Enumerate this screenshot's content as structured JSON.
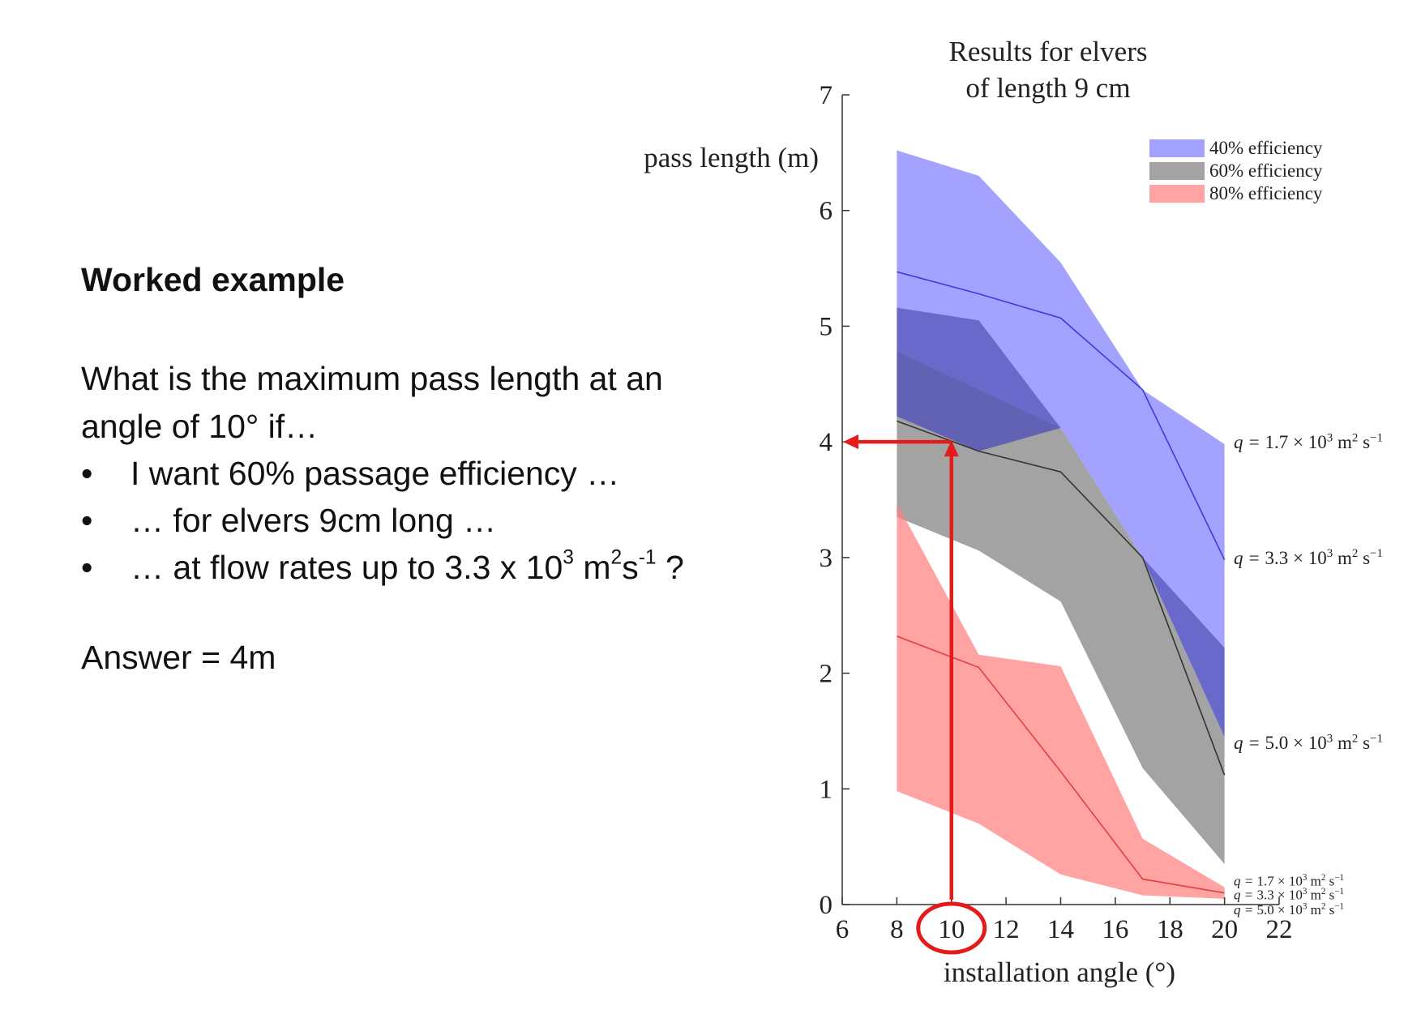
{
  "slide": {
    "heading": "Worked example",
    "question": "What is the maximum pass length at an angle of 10° if…",
    "bullet_symbol": "•",
    "bullets": [
      {
        "text": "I want 60% passage efficiency …"
      },
      {
        "text": "… for elvers 9cm long …"
      },
      {
        "pre": "… at flow rates up to 3.3 x 10",
        "sup1": "3",
        "mid": " m",
        "sup2": "2",
        "mid2": "s",
        "sup3": "-1",
        "post": " ?"
      }
    ],
    "answer": "Answer = 4m"
  },
  "chart_data": {
    "type": "area",
    "title_lines": [
      "Results for elvers",
      "of length 9 cm"
    ],
    "ylabel": "pass length (m)",
    "xlabel": "installation angle (°)",
    "xlim": [
      6,
      22
    ],
    "ylim": [
      0,
      7
    ],
    "xticks": [
      6,
      8,
      10,
      12,
      14,
      16,
      18,
      20,
      22
    ],
    "yticks": [
      0,
      1,
      2,
      3,
      4,
      5,
      6,
      7
    ],
    "x": [
      8,
      11,
      14,
      17,
      20
    ],
    "legend_position": "top-right",
    "series": [
      {
        "name": "40% efficiency",
        "color": "#7f7fff",
        "upper": [
          6.52,
          6.3,
          5.55,
          4.45,
          3.98
        ],
        "lower": [
          4.22,
          3.92,
          4.12,
          3.0,
          1.45
        ],
        "mid": [
          5.47,
          5.28,
          5.07,
          4.45,
          2.98
        ]
      },
      {
        "name": "60% efficiency",
        "color": "#808080",
        "upper": [
          4.78,
          4.45,
          4.12,
          3.0,
          1.45
        ],
        "lower": [
          3.35,
          3.06,
          2.62,
          1.18,
          0.35
        ],
        "mid": [
          4.18,
          3.92,
          3.74,
          3.0,
          1.12
        ]
      },
      {
        "name": "80% efficiency",
        "color": "#ff8080",
        "upper": [
          3.47,
          2.16,
          2.06,
          0.57,
          0.15
        ],
        "lower": [
          0.98,
          0.7,
          0.26,
          0.08,
          0.05
        ],
        "mid": [
          2.32,
          2.05,
          1.15,
          0.22,
          0.1
        ]
      }
    ],
    "dark_overlap": {
      "x": [
        8,
        11,
        14,
        17,
        20
      ],
      "upper": [
        5.16,
        5.05,
        4.12,
        3.0,
        2.22
      ],
      "lower": [
        4.22,
        3.92,
        4.12,
        3.0,
        1.45
      ],
      "color": "#5555bb"
    },
    "flow_labels_right": [
      {
        "q": "1.7",
        "y": 4.0
      },
      {
        "q": "3.3",
        "y": 3.0
      },
      {
        "q": "5.0",
        "y": 1.4
      }
    ],
    "flow_labels_bottom": [
      {
        "q": "1.7",
        "y": 0.2
      },
      {
        "q": "3.3",
        "y": 0.08
      },
      {
        "q": "5.0",
        "y": -0.05
      }
    ],
    "flow_label_prefix": "q = ",
    "flow_label_times": " × 10",
    "flow_label_exp": "3",
    "flow_label_unit": " m",
    "flow_label_unit_exp": "2",
    "flow_label_unit2": " s",
    "flow_label_unit2_exp": "−1",
    "annotation": {
      "color": "#e31b1b",
      "x_angle": 10,
      "y_value": 4.0,
      "circled_tick": 10
    }
  }
}
